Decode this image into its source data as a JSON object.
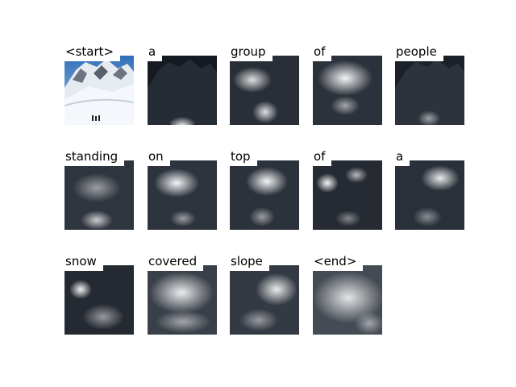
{
  "tokens": [
    {
      "label": "<start>",
      "kind": "photo"
    },
    {
      "label": "a",
      "kind": "attention",
      "focus": "bottom-center"
    },
    {
      "label": "group",
      "kind": "attention",
      "focus": "upper-left"
    },
    {
      "label": "of",
      "kind": "attention",
      "focus": "upper-center"
    },
    {
      "label": "people",
      "kind": "attention",
      "focus": "faint"
    },
    {
      "label": "standing",
      "kind": "attention",
      "focus": "bottom-center"
    },
    {
      "label": "on",
      "kind": "attention",
      "focus": "upper-center"
    },
    {
      "label": "top",
      "kind": "attention",
      "focus": "upper-center"
    },
    {
      "label": "of",
      "kind": "attention",
      "focus": "upper-left"
    },
    {
      "label": "a",
      "kind": "attention",
      "focus": "upper-right"
    },
    {
      "label": "snow",
      "kind": "attention",
      "focus": "left"
    },
    {
      "label": "covered",
      "kind": "attention",
      "focus": "broad"
    },
    {
      "label": "slope",
      "kind": "attention",
      "focus": "upper-right"
    },
    {
      "label": "<end>",
      "kind": "attention",
      "focus": "broad"
    }
  ]
}
